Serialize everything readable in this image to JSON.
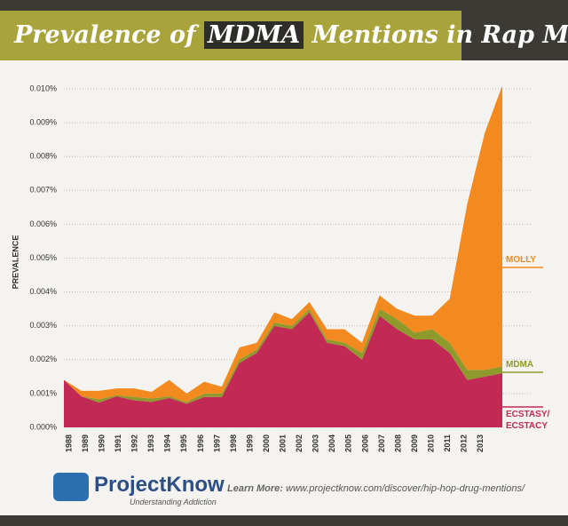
{
  "header": {
    "title_before": "Prevalence of",
    "title_highlight": "MDMA",
    "title_after": "Mentions in Rap Music"
  },
  "footer": {
    "brand": "ProjectKnow",
    "tagline": "Understanding Addiction",
    "learn_more": "Learn More:",
    "url": "www.projectknow.com/discover/hip-hop-drug-mentions/"
  },
  "chart_data": {
    "type": "area",
    "stacked": true,
    "y_label": "PREVALENCE",
    "categories": [
      "1988",
      "1989",
      "1990",
      "1991",
      "1992",
      "1993",
      "1994",
      "1995",
      "1996",
      "1997",
      "1998",
      "1999",
      "2000",
      "2001",
      "2002",
      "2003",
      "2004",
      "2005",
      "2006",
      "2007",
      "2008",
      "2009",
      "2010",
      "2011",
      "2012",
      "2013"
    ],
    "series": [
      {
        "name": "ECSTASY/ ECSTACY",
        "color": "#c22a55",
        "values": [
          0.0014,
          0.00092,
          0.00073,
          0.00092,
          0.0008,
          0.00075,
          0.00087,
          0.0007,
          0.0009,
          0.0009,
          0.0019,
          0.0022,
          0.003,
          0.0029,
          0.0034,
          0.0025,
          0.0024,
          0.002,
          0.0033,
          0.0029,
          0.0026,
          0.0026,
          0.0022,
          0.0014,
          0.0015,
          0.0016
        ]
      },
      {
        "name": "MDMA",
        "color": "#8f9a2c",
        "values": [
          0,
          0,
          0.0001,
          3e-05,
          0.0001,
          0.0001,
          5e-05,
          5e-05,
          0.0001,
          0.0001,
          0.0001,
          0.0001,
          0.0001,
          0.0001,
          0.0001,
          0.0001,
          0.0001,
          0.0002,
          0.0002,
          0.0003,
          0.0002,
          0.0003,
          0.0003,
          0.0003,
          0.0002,
          0.0002
        ]
      },
      {
        "name": "MOLLY",
        "color": "#f28a1f",
        "values": [
          0,
          0.00016,
          0.00025,
          0.0002,
          0.00025,
          0.0002,
          0.00048,
          0.00025,
          0.00035,
          0.0002,
          0.00036,
          0.0002,
          0.0003,
          0.0002,
          0.0002,
          0.0003,
          0.0004,
          0.0003,
          0.0004,
          0.0003,
          0.0005,
          0.0004,
          0.0013,
          0.0049,
          0.007,
          0.0083
        ]
      }
    ],
    "ylim": [
      0,
      0.01
    ],
    "yticks": [
      {
        "value": 0,
        "label": "0.000%"
      },
      {
        "value": 0.001,
        "label": "0.001%"
      },
      {
        "value": 0.002,
        "label": "0.002%"
      },
      {
        "value": 0.003,
        "label": "0.003%"
      },
      {
        "value": 0.004,
        "label": "0.004%"
      },
      {
        "value": 0.005,
        "label": "0.005%"
      },
      {
        "value": 0.006,
        "label": "0.006%"
      },
      {
        "value": 0.007,
        "label": "0.007%"
      },
      {
        "value": 0.008,
        "label": "0.008%"
      },
      {
        "value": 0.009,
        "label": "0.009%"
      },
      {
        "value": 0.01,
        "label": "0.010%"
      }
    ],
    "grid": true
  }
}
